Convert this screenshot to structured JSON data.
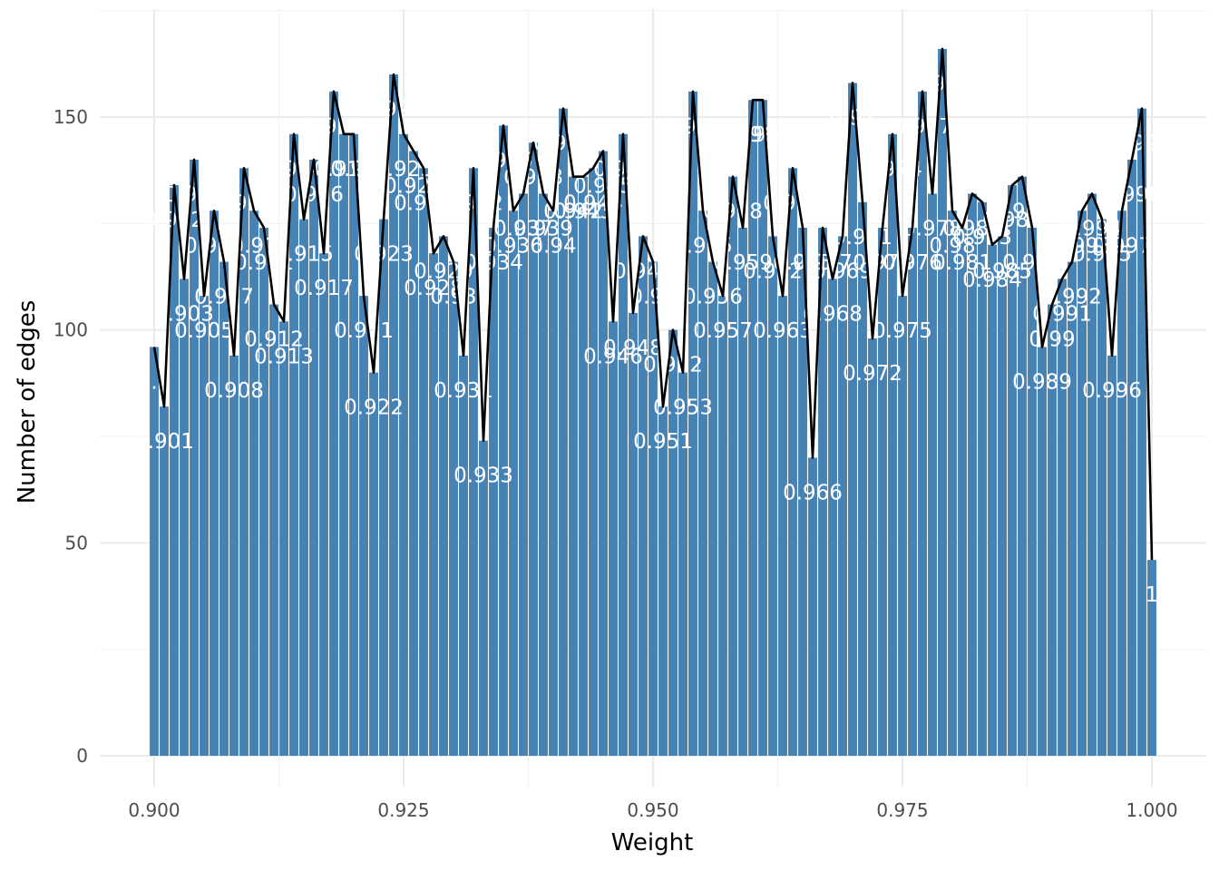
{
  "chart_data": {
    "type": "bar",
    "overlay": "line",
    "title": "",
    "xlabel": "Weight",
    "ylabel": "Number of edges",
    "xlim": [
      0.895,
      1.005
    ],
    "ylim": [
      -8,
      166
    ],
    "x_ticks": [
      0.9,
      0.925,
      0.95,
      0.975,
      1.0
    ],
    "x_tick_labels": [
      "0.900",
      "0.925",
      "0.950",
      "0.975",
      "1.000"
    ],
    "y_ticks": [
      0,
      50,
      100,
      150
    ],
    "y_tick_labels": [
      "0",
      "50",
      "100",
      "150"
    ],
    "bar_color": "#4682b4",
    "line_color": "#000000",
    "label_color": "#ffffff",
    "grid": true,
    "legend": "none",
    "x": [
      0.9,
      0.901,
      0.902,
      0.903,
      0.904,
      0.905,
      0.906,
      0.907,
      0.908,
      0.909,
      0.91,
      0.911,
      0.912,
      0.913,
      0.914,
      0.915,
      0.916,
      0.917,
      0.918,
      0.919,
      0.92,
      0.921,
      0.922,
      0.923,
      0.924,
      0.925,
      0.926,
      0.927,
      0.928,
      0.929,
      0.93,
      0.931,
      0.932,
      0.933,
      0.934,
      0.935,
      0.936,
      0.937,
      0.938,
      0.939,
      0.94,
      0.941,
      0.942,
      0.943,
      0.944,
      0.945,
      0.946,
      0.947,
      0.948,
      0.949,
      0.95,
      0.951,
      0.952,
      0.953,
      0.954,
      0.955,
      0.956,
      0.957,
      0.958,
      0.959,
      0.96,
      0.961,
      0.962,
      0.963,
      0.964,
      0.965,
      0.966,
      0.967,
      0.968,
      0.969,
      0.97,
      0.971,
      0.972,
      0.973,
      0.974,
      0.975,
      0.976,
      0.977,
      0.978,
      0.979,
      0.98,
      0.981,
      0.982,
      0.983,
      0.984,
      0.985,
      0.986,
      0.987,
      0.988,
      0.989,
      0.99,
      0.991,
      0.992,
      0.993,
      0.994,
      0.995,
      0.996,
      0.997,
      0.998,
      0.999,
      1.0
    ],
    "values": [
      96,
      82,
      134,
      112,
      140,
      108,
      128,
      116,
      94,
      138,
      128,
      124,
      106,
      102,
      146,
      126,
      140,
      118,
      156,
      146,
      146,
      108,
      90,
      126,
      160,
      146,
      142,
      138,
      118,
      122,
      116,
      94,
      138,
      74,
      124,
      148,
      128,
      132,
      144,
      132,
      128,
      152,
      136,
      136,
      138,
      142,
      102,
      146,
      104,
      122,
      116,
      82,
      100,
      90,
      156,
      128,
      116,
      108,
      136,
      124,
      154,
      154,
      122,
      108,
      138,
      124,
      70,
      124,
      112,
      122,
      158,
      130,
      98,
      124,
      146,
      108,
      124,
      156,
      132,
      166,
      128,
      124,
      132,
      130,
      120,
      122,
      134,
      136,
      124,
      96,
      106,
      112,
      116,
      128,
      132,
      126,
      94,
      128,
      140,
      152,
      46
    ],
    "labels": [
      "0.9",
      "0.901",
      "0.902",
      "0.903",
      "0.904",
      "0.905",
      "0.906",
      "0.907",
      "0.908",
      "0.909",
      "0.91",
      "0.911",
      "0.912",
      "0.913",
      "0.914",
      "0.915",
      "0.916",
      "0.917",
      "0.918",
      "0.919",
      "0.92",
      "0.921",
      "0.922",
      "0.923",
      "0.924",
      "0.925",
      "0.926",
      "0.927",
      "0.928",
      "0.929",
      "0.93",
      "0.931",
      "0.932",
      "0.933",
      "0.934",
      "0.935",
      "0.936",
      "0.937",
      "0.938",
      "0.939",
      "0.94",
      "0.941",
      "0.942",
      "0.943",
      "0.944",
      "0.945",
      "0.946",
      "0.947",
      "0.948",
      "0.949",
      "0.95",
      "0.951",
      "0.952",
      "0.953",
      "0.954",
      "0.955",
      "0.956",
      "0.957",
      "0.958",
      "0.959",
      "0.96",
      "0.961",
      "0.962",
      "0.963",
      "0.964",
      "0.965",
      "0.966",
      "0.967",
      "0.968",
      "0.969",
      "0.97",
      "0.971",
      "0.972",
      "0.973",
      "0.974",
      "0.975",
      "0.976",
      "0.977",
      "0.978",
      "0.979",
      "0.98",
      "0.981",
      "0.982",
      "0.983",
      "0.984",
      "0.985",
      "0.986",
      "0.987",
      "0.988",
      "0.989",
      "0.99",
      "0.991",
      "0.992",
      "0.993",
      "0.994",
      "0.995",
      "0.996",
      "0.997",
      "0.998",
      "0.999",
      "1"
    ]
  }
}
